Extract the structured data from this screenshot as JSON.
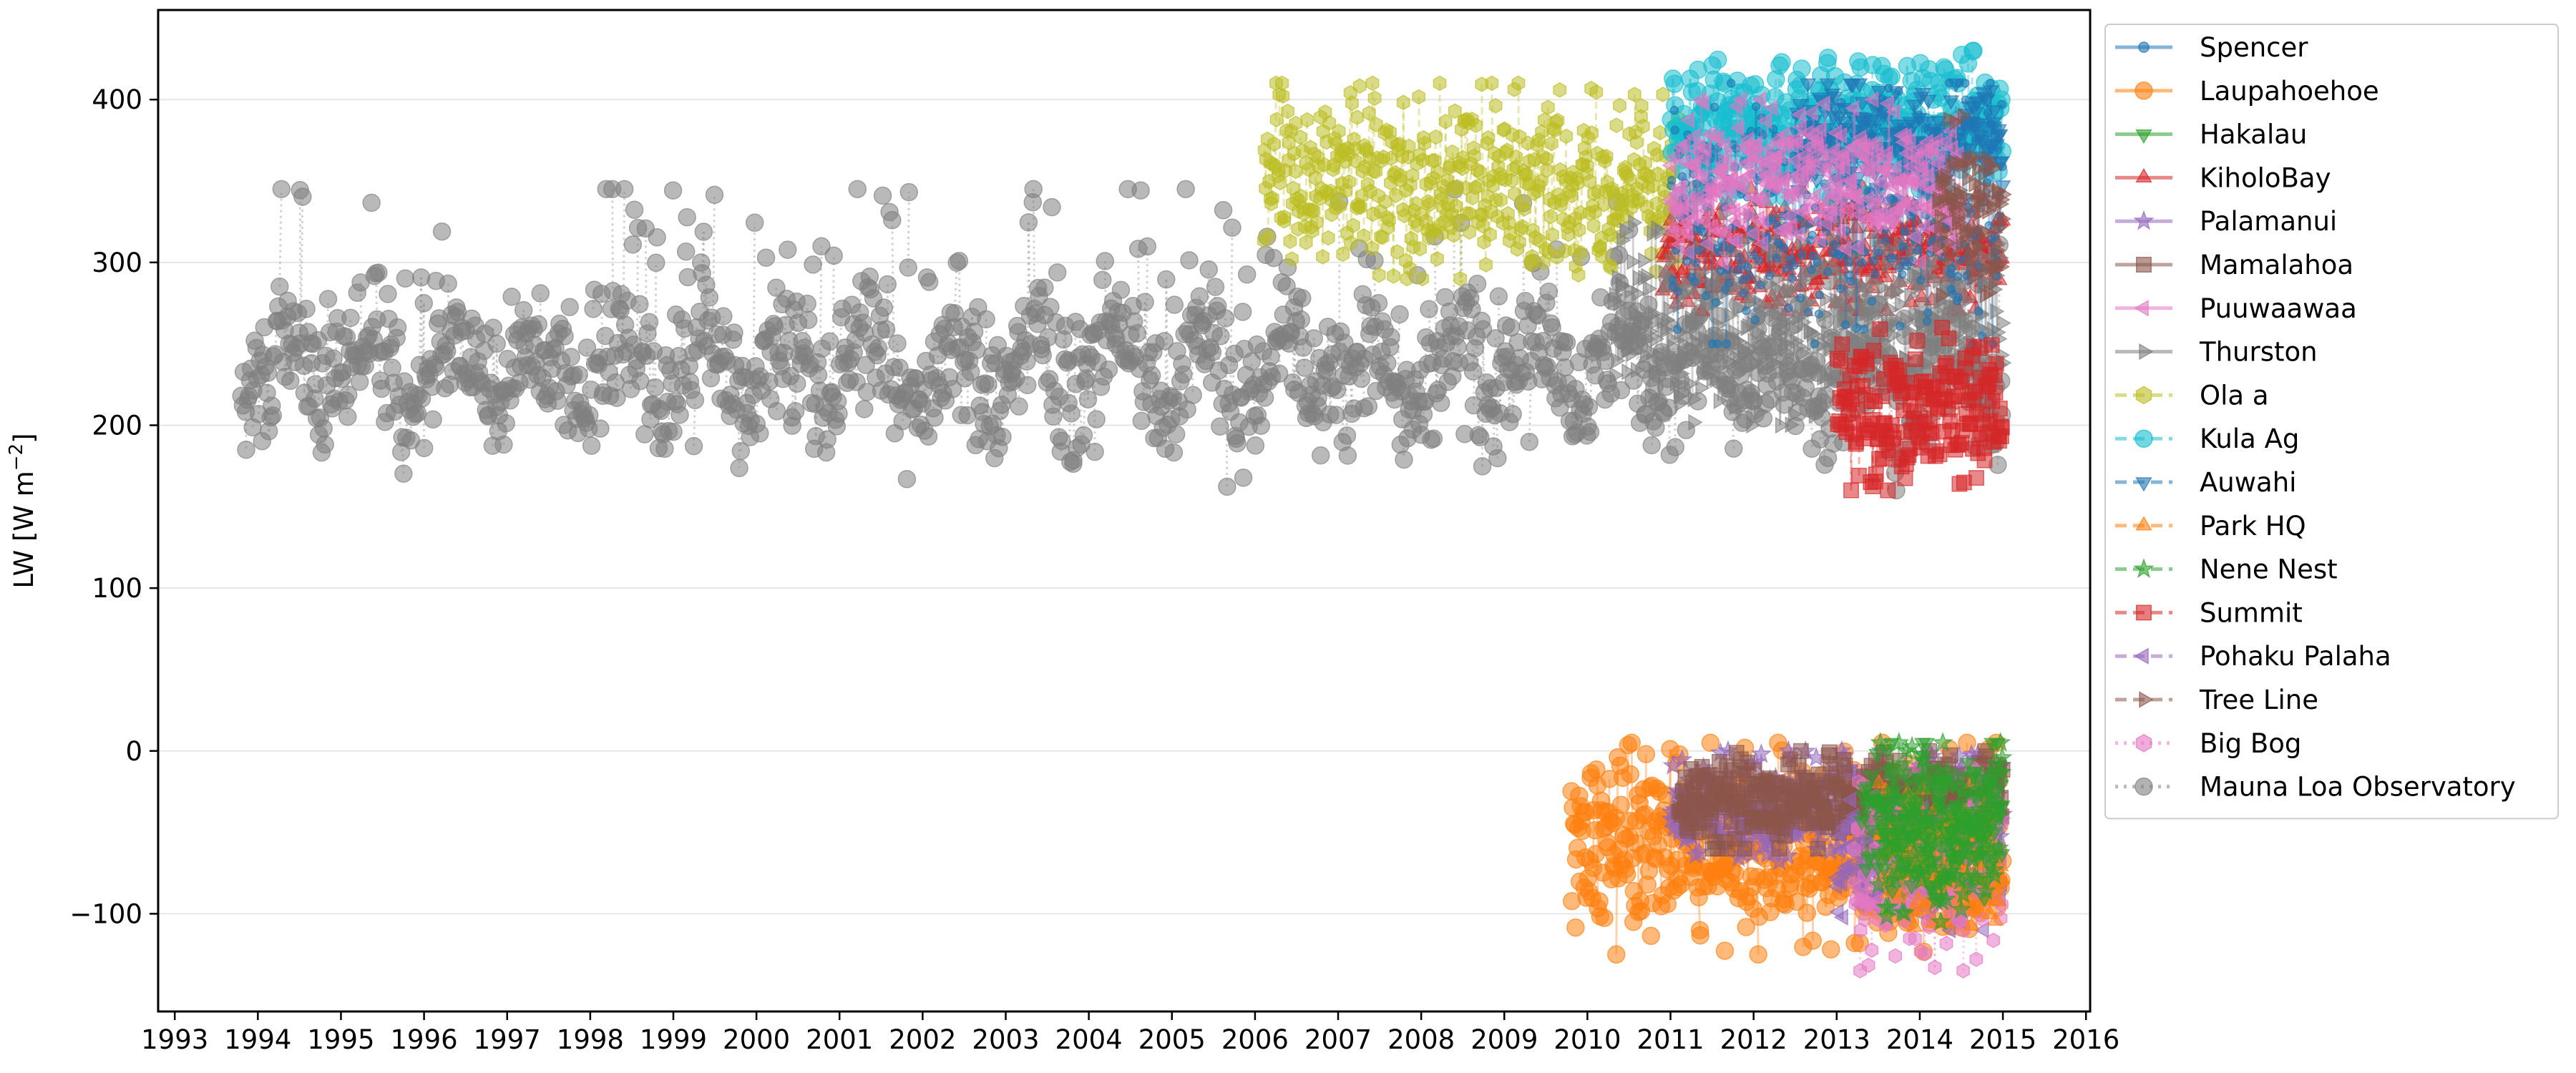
{
  "chart_data": {
    "type": "scatter",
    "xlabel": "",
    "ylabel": "LW [W m",
    "ylabel_sup": "−2",
    "ylabel_end": "]",
    "xlim": [
      1992.8,
      2016.05
    ],
    "ylim": [
      -160,
      455
    ],
    "x_ticks": [
      "1993",
      "1994",
      "1995",
      "1996",
      "1997",
      "1998",
      "1999",
      "2000",
      "2001",
      "2002",
      "2003",
      "2004",
      "2005",
      "2006",
      "2007",
      "2008",
      "2009",
      "2010",
      "2011",
      "2012",
      "2013",
      "2014",
      "2015",
      "2016"
    ],
    "y_ticks": [
      -100,
      0,
      100,
      200,
      300,
      400
    ],
    "y_tick_labels": [
      "−100",
      "0",
      "100",
      "200",
      "300",
      "400"
    ],
    "grid": "horizontal",
    "legend_position": "outside-right",
    "series": [
      {
        "name": "Spencer",
        "color": "#1f77b4",
        "marker": "point",
        "linestyle": "solid",
        "x_range": [
          2011.0,
          2015.0
        ],
        "y_range": [
          250,
          410
        ],
        "y_center": 360
      },
      {
        "name": "Laupahoehoe",
        "color": "#ff7f0e",
        "marker": "circle",
        "linestyle": "solid",
        "x_range": [
          2009.8,
          2015.0
        ],
        "y_range": [
          -125,
          5
        ],
        "y_center": -50
      },
      {
        "name": "Hakalau",
        "color": "#2ca02c",
        "marker": "triangle-down",
        "linestyle": "solid",
        "x_range": [
          2013.3,
          2015.0
        ],
        "y_range": [
          -90,
          5
        ],
        "y_center": -20
      },
      {
        "name": "KiholoBay",
        "color": "#d62728",
        "marker": "triangle-up",
        "linestyle": "solid",
        "x_range": [
          2010.9,
          2015.0
        ],
        "y_range": [
          270,
          345
        ],
        "y_center": 300
      },
      {
        "name": "Palamanui",
        "color": "#9467bd",
        "marker": "star",
        "linestyle": "solid",
        "x_range": [
          2011.0,
          2015.0
        ],
        "y_range": [
          -70,
          0
        ],
        "y_center": -40
      },
      {
        "name": "Mamalahoa",
        "color": "#8c564b",
        "marker": "square",
        "linestyle": "solid",
        "x_range": [
          2011.1,
          2015.0
        ],
        "y_range": [
          -60,
          0
        ],
        "y_center": -30
      },
      {
        "name": "Puuwaawaa",
        "color": "#e377c2",
        "marker": "triangle-left",
        "linestyle": "solid",
        "x_range": [
          2011.0,
          2014.5
        ],
        "y_range": [
          300,
          400
        ],
        "y_center": 355
      },
      {
        "name": "Thurston",
        "color": "#7f7f7f",
        "marker": "triangle-right",
        "linestyle": "solid",
        "x_range": [
          2010.3,
          2015.0
        ],
        "y_range": [
          200,
          330
        ],
        "y_center": 260
      },
      {
        "name": "Ola a",
        "color": "#bcbd22",
        "marker": "hexagon",
        "linestyle": "dashed",
        "x_range": [
          2006.1,
          2011.1
        ],
        "y_range": [
          290,
          410
        ],
        "y_center": 360
      },
      {
        "name": "Kula Ag",
        "color": "#17becf",
        "marker": "circle",
        "linestyle": "dashed",
        "x_range": [
          2011.0,
          2015.0
        ],
        "y_range": [
          340,
          430
        ],
        "y_center": 385
      },
      {
        "name": "Auwahi",
        "color": "#1f77b4",
        "marker": "triangle-down",
        "linestyle": "dashed",
        "x_range": [
          2012.5,
          2015.0
        ],
        "y_range": [
          340,
          410
        ],
        "y_center": 380
      },
      {
        "name": "Park HQ",
        "color": "#ff7f0e",
        "marker": "triangle-up",
        "linestyle": "dashed",
        "x_range": [
          2013.5,
          2015.0
        ],
        "y_range": [
          -110,
          -20
        ],
        "y_center": -70
      },
      {
        "name": "Nene Nest",
        "color": "#2ca02c",
        "marker": "star",
        "linestyle": "dashed",
        "x_range": [
          2013.5,
          2015.0
        ],
        "y_range": [
          -105,
          5
        ],
        "y_center": -30
      },
      {
        "name": "Summit",
        "color": "#d62728",
        "marker": "square",
        "linestyle": "dashed",
        "x_range": [
          2013.0,
          2015.0
        ],
        "y_range": [
          160,
          260
        ],
        "y_center": 205
      },
      {
        "name": "Pohaku Palaha",
        "color": "#9467bd",
        "marker": "triangle-left",
        "linestyle": "dashed",
        "x_range": [
          2013.0,
          2015.0
        ],
        "y_range": [
          -110,
          -30
        ],
        "y_center": -70
      },
      {
        "name": "Tree Line",
        "color": "#8c564b",
        "marker": "triangle-right",
        "linestyle": "dashed",
        "x_range": [
          2014.2,
          2015.0
        ],
        "y_range": [
          280,
          390
        ],
        "y_center": 340
      },
      {
        "name": "Big Bog",
        "color": "#e377c2",
        "marker": "hexagon",
        "linestyle": "dotted",
        "x_range": [
          2013.2,
          2015.0
        ],
        "y_range": [
          -135,
          -10
        ],
        "y_center": -70
      },
      {
        "name": "Mauna Loa Observatory",
        "color": "#7f7f7f",
        "marker": "circle",
        "linestyle": "dotted",
        "x_range": [
          1993.8,
          2015.0
        ],
        "y_range": [
          160,
          345
        ],
        "y_center": 235
      }
    ]
  }
}
